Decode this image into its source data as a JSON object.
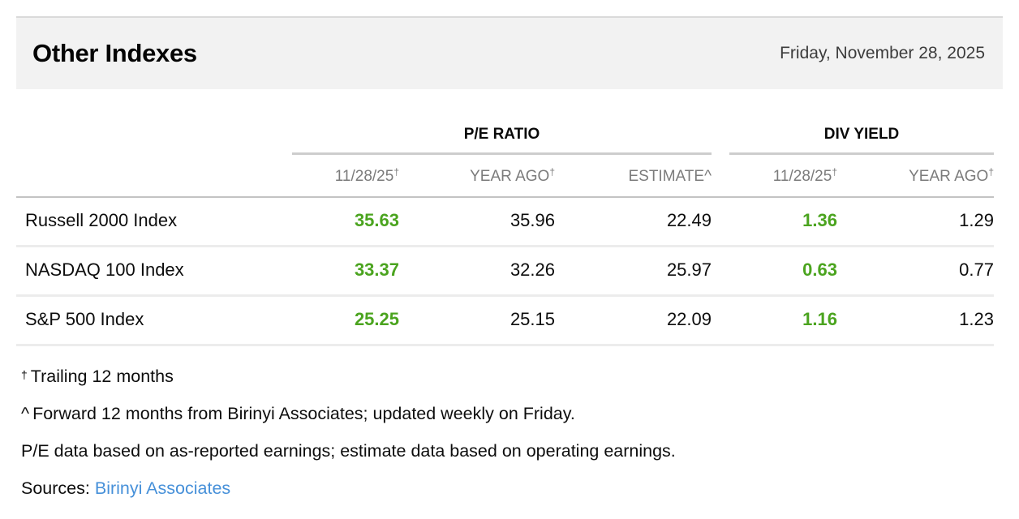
{
  "header": {
    "title": "Other Indexes",
    "date": "Friday, November 28, 2025"
  },
  "table": {
    "group_headers": [
      {
        "label": "P/E RATIO"
      },
      {
        "label": "DIV YIELD"
      }
    ],
    "columns": [
      {
        "label": "11/28/25",
        "sup": "†"
      },
      {
        "label": "YEAR AGO",
        "sup": "†"
      },
      {
        "label": "ESTIMATE^",
        "sup": ""
      },
      {
        "label": "11/28/25",
        "sup": "†"
      },
      {
        "label": "YEAR AGO",
        "sup": "†"
      }
    ],
    "rows": [
      {
        "name": "Russell 2000 Index",
        "pe_latest": "35.63",
        "pe_year_ago": "35.96",
        "pe_estimate": "22.49",
        "div_latest": "1.36",
        "div_year_ago": "1.29"
      },
      {
        "name": "NASDAQ 100 Index",
        "pe_latest": "33.37",
        "pe_year_ago": "32.26",
        "pe_estimate": "25.97",
        "div_latest": "0.63",
        "div_year_ago": "0.77"
      },
      {
        "name": "S&P 500 Index",
        "pe_latest": "25.25",
        "pe_year_ago": "25.15",
        "pe_estimate": "22.09",
        "div_latest": "1.16",
        "div_year_ago": "1.23"
      }
    ]
  },
  "footnotes": {
    "trailing_marker": "†",
    "trailing_text": "Trailing 12 months",
    "forward_marker": "^",
    "forward_text": "Forward 12 months from Birinyi Associates; updated weekly on Friday.",
    "pe_basis": "P/E data based on as-reported earnings; estimate data based on operating earnings.",
    "sources_label": "Sources:",
    "sources_link": "Birinyi Associates"
  },
  "colors": {
    "positive-green": "#4ba41f",
    "link-blue": "#4690d9"
  }
}
